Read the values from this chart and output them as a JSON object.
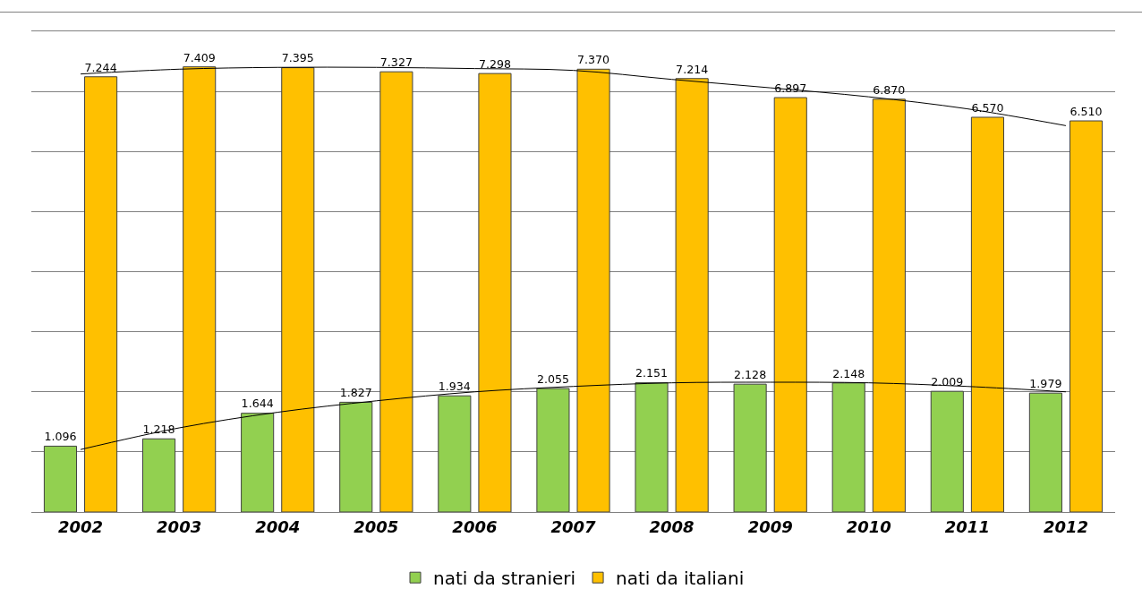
{
  "chart_data": {
    "type": "bar",
    "categories": [
      "2002",
      "2003",
      "2004",
      "2005",
      "2006",
      "2007",
      "2008",
      "2009",
      "2010",
      "2011",
      "2012"
    ],
    "series": [
      {
        "name": "nati da stranieri",
        "color": "#92d050",
        "values": [
          1096,
          1218,
          1644,
          1827,
          1934,
          2055,
          2151,
          2128,
          2148,
          2009,
          1979
        ],
        "value_labels": [
          "1.096",
          "1.218",
          "1.644",
          "1.827",
          "1.934",
          "2.055",
          "2.151",
          "2.128",
          "2.148",
          "2.009",
          "1.979"
        ]
      },
      {
        "name": "nati da italiani",
        "color": "#ffc000",
        "values": [
          7244,
          7409,
          7395,
          7327,
          7298,
          7370,
          7214,
          6897,
          6870,
          6570,
          6510
        ],
        "value_labels": [
          "7.244",
          "7.409",
          "7.395",
          "7.327",
          "7.298",
          "7.370",
          "7.214",
          "6.897",
          "6.870",
          "6.570",
          "6.510"
        ]
      },
      {
        "type": "line",
        "color": "#000000",
        "values": [
          1040,
          1400,
          1660,
          1850,
          2000,
          2090,
          2150,
          2160,
          2150,
          2090,
          2000
        ]
      },
      {
        "type": "line",
        "color": "#000000",
        "values": [
          7290,
          7370,
          7400,
          7400,
          7380,
          7350,
          7200,
          7060,
          6910,
          6710,
          6430
        ]
      }
    ],
    "ylim": [
      0,
      8000
    ],
    "yticks": [
      {
        "value": 0,
        "label": null
      },
      {
        "value": 1000,
        "label": null
      },
      {
        "value": 2000,
        "label": null
      },
      {
        "value": 3000,
        "label": null
      },
      {
        "value": 4000,
        "label": null
      },
      {
        "value": 5000,
        "label": null
      },
      {
        "value": 6000,
        "label": null
      },
      {
        "value": 7000,
        "label": null
      },
      {
        "value": 8000,
        "label": null
      }
    ],
    "grid": "y",
    "tick_labels": "x",
    "legend": "bottom",
    "marker": "none",
    "line_style": "solid"
  }
}
